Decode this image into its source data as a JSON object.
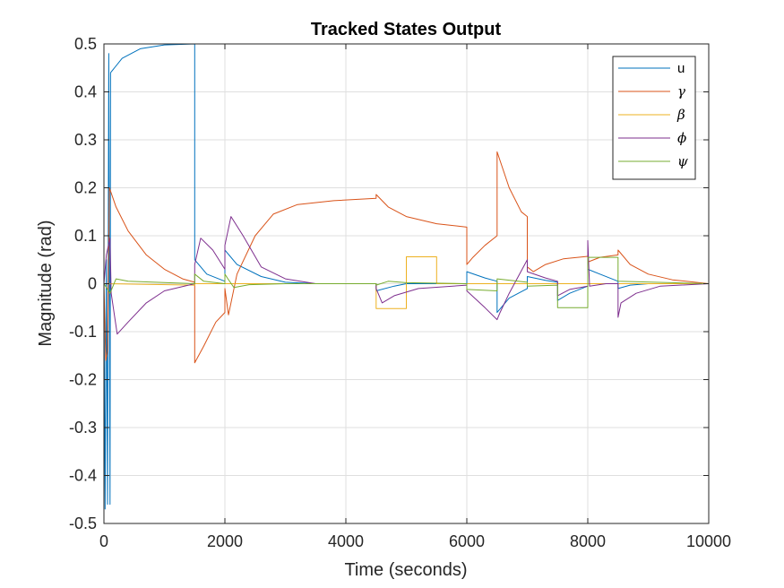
{
  "chart_data": {
    "type": "line",
    "title": "Tracked States Output",
    "xlabel": "Time (seconds)",
    "ylabel": "Magnitude (rad)",
    "xlim": [
      0,
      10000
    ],
    "ylim": [
      -0.5,
      0.5
    ],
    "grid": true,
    "legend_position": "top-right",
    "xticks": [
      0,
      2000,
      4000,
      6000,
      8000,
      10000
    ],
    "xtick_labels": [
      "0",
      "2000",
      "4000",
      "6000",
      "8000",
      "10000"
    ],
    "yticks": [
      -0.5,
      -0.4,
      -0.3,
      -0.2,
      -0.1,
      0,
      0.1,
      0.2,
      0.3,
      0.4,
      0.5
    ],
    "ytick_labels": [
      "-0.5",
      "-0.4",
      "-0.3",
      "-0.2",
      "-0.1",
      "0",
      "0.1",
      "0.2",
      "0.3",
      "0.4",
      "0.5"
    ],
    "series": [
      {
        "name": "u",
        "label": "u",
        "color": "#0072BD",
        "points": [
          [
            0,
            0
          ],
          [
            20,
            -0.47
          ],
          [
            40,
            0.05
          ],
          [
            60,
            -0.46
          ],
          [
            80,
            0.48
          ],
          [
            100,
            -0.46
          ],
          [
            110,
            0.44
          ],
          [
            300,
            0.47
          ],
          [
            600,
            0.49
          ],
          [
            1000,
            0.498
          ],
          [
            1500,
            0.5
          ],
          [
            1500,
            0.05
          ],
          [
            1700,
            0.02
          ],
          [
            2000,
            0.005
          ],
          [
            2000,
            0.07
          ],
          [
            2200,
            0.04
          ],
          [
            2600,
            0.015
          ],
          [
            3000,
            0.003
          ],
          [
            3500,
            0.0
          ],
          [
            4500,
            0.0
          ],
          [
            4500,
            -0.015
          ],
          [
            4800,
            -0.005
          ],
          [
            5000,
            0.0
          ],
          [
            6000,
            0.0
          ],
          [
            6000,
            0.025
          ],
          [
            6300,
            0.012
          ],
          [
            6500,
            0.005
          ],
          [
            6500,
            -0.06
          ],
          [
            6700,
            -0.03
          ],
          [
            7000,
            -0.01
          ],
          [
            7000,
            0.015
          ],
          [
            7300,
            0.007
          ],
          [
            7500,
            0.003
          ],
          [
            7500,
            -0.035
          ],
          [
            7700,
            -0.02
          ],
          [
            8000,
            -0.005
          ],
          [
            8000,
            0.03
          ],
          [
            8200,
            0.02
          ],
          [
            8500,
            0.005
          ],
          [
            8500,
            -0.01
          ],
          [
            8700,
            -0.003
          ],
          [
            9000,
            0.0
          ],
          [
            10000,
            0.0
          ]
        ]
      },
      {
        "name": "gamma",
        "label": "γ",
        "color": "#D95319",
        "points": [
          [
            0,
            0
          ],
          [
            30,
            -0.16
          ],
          [
            60,
            -0.14
          ],
          [
            90,
            0.2
          ],
          [
            200,
            0.16
          ],
          [
            400,
            0.11
          ],
          [
            700,
            0.06
          ],
          [
            1000,
            0.03
          ],
          [
            1300,
            0.01
          ],
          [
            1500,
            0.003
          ],
          [
            1500,
            -0.165
          ],
          [
            1650,
            -0.13
          ],
          [
            1850,
            -0.08
          ],
          [
            2000,
            -0.06
          ],
          [
            2000,
            -0.01
          ],
          [
            2060,
            -0.065
          ],
          [
            2200,
            0.02
          ],
          [
            2500,
            0.1
          ],
          [
            2800,
            0.145
          ],
          [
            3200,
            0.165
          ],
          [
            3800,
            0.173
          ],
          [
            4500,
            0.178
          ],
          [
            4500,
            0.186
          ],
          [
            4700,
            0.16
          ],
          [
            5000,
            0.14
          ],
          [
            5500,
            0.125
          ],
          [
            6000,
            0.118
          ],
          [
            6000,
            0.04
          ],
          [
            6100,
            0.055
          ],
          [
            6300,
            0.08
          ],
          [
            6500,
            0.1
          ],
          [
            6500,
            0.275
          ],
          [
            6700,
            0.2
          ],
          [
            6900,
            0.15
          ],
          [
            7000,
            0.14
          ],
          [
            7000,
            0.035
          ],
          [
            7100,
            0.025
          ],
          [
            7300,
            0.04
          ],
          [
            7600,
            0.052
          ],
          [
            8000,
            0.057
          ],
          [
            8000,
            0.045
          ],
          [
            8200,
            0.055
          ],
          [
            8500,
            0.06
          ],
          [
            8500,
            0.07
          ],
          [
            8700,
            0.04
          ],
          [
            9000,
            0.02
          ],
          [
            9400,
            0.008
          ],
          [
            10000,
            0.0
          ]
        ]
      },
      {
        "name": "beta",
        "label": "β",
        "color": "#EDB120",
        "points": [
          [
            0,
            0
          ],
          [
            1500,
            -0.003
          ],
          [
            1500,
            0.0
          ],
          [
            4500,
            0.0
          ],
          [
            4500,
            -0.052
          ],
          [
            5000,
            -0.052
          ],
          [
            5000,
            0.056
          ],
          [
            5500,
            0.056
          ],
          [
            5500,
            0.0
          ],
          [
            10000,
            0.0
          ]
        ]
      },
      {
        "name": "phi",
        "label": "ϕ",
        "color": "#7E2F8E",
        "points": [
          [
            0,
            0
          ],
          [
            40,
            0.06
          ],
          [
            100,
            0.095
          ],
          [
            120,
            -0.02
          ],
          [
            220,
            -0.105
          ],
          [
            400,
            -0.08
          ],
          [
            700,
            -0.04
          ],
          [
            1000,
            -0.015
          ],
          [
            1500,
            0.0
          ],
          [
            1500,
            0.04
          ],
          [
            1600,
            0.095
          ],
          [
            1800,
            0.07
          ],
          [
            2000,
            0.03
          ],
          [
            2000,
            0.08
          ],
          [
            2100,
            0.14
          ],
          [
            2300,
            0.1
          ],
          [
            2600,
            0.035
          ],
          [
            3000,
            0.01
          ],
          [
            3500,
            0.0
          ],
          [
            4500,
            0.0
          ],
          [
            4500,
            -0.01
          ],
          [
            4600,
            -0.04
          ],
          [
            4800,
            -0.025
          ],
          [
            5200,
            -0.01
          ],
          [
            6000,
            -0.003
          ],
          [
            6000,
            -0.015
          ],
          [
            6300,
            -0.05
          ],
          [
            6500,
            -0.075
          ],
          [
            6550,
            -0.06
          ],
          [
            6700,
            -0.02
          ],
          [
            7000,
            0.05
          ],
          [
            7000,
            0.025
          ],
          [
            7300,
            0.012
          ],
          [
            7500,
            0.005
          ],
          [
            7500,
            -0.025
          ],
          [
            7700,
            -0.012
          ],
          [
            8000,
            -0.005
          ],
          [
            8000,
            0.09
          ],
          [
            8030,
            -0.005
          ],
          [
            8300,
            0.0
          ],
          [
            8500,
            0.0
          ],
          [
            8500,
            -0.07
          ],
          [
            8550,
            -0.04
          ],
          [
            8800,
            -0.02
          ],
          [
            9200,
            -0.005
          ],
          [
            10000,
            0.0
          ]
        ]
      },
      {
        "name": "psi",
        "label": "ψ",
        "color": "#77AC30",
        "points": [
          [
            0,
            0
          ],
          [
            100,
            -0.02
          ],
          [
            200,
            0.01
          ],
          [
            400,
            0.005
          ],
          [
            1500,
            0.0
          ],
          [
            1500,
            0.02
          ],
          [
            1650,
            0.005
          ],
          [
            2000,
            0.0
          ],
          [
            2000,
            0.02
          ],
          [
            2050,
            0.01
          ],
          [
            2150,
            -0.008
          ],
          [
            2400,
            -0.002
          ],
          [
            3000,
            0.0
          ],
          [
            4500,
            0.0
          ],
          [
            4500,
            -0.003
          ],
          [
            4700,
            0.005
          ],
          [
            5000,
            0.002
          ],
          [
            6000,
            0.0
          ],
          [
            6000,
            -0.012
          ],
          [
            6500,
            -0.015
          ],
          [
            6500,
            0.01
          ],
          [
            7000,
            0.003
          ],
          [
            7000,
            -0.005
          ],
          [
            7500,
            -0.003
          ],
          [
            7500,
            -0.05
          ],
          [
            8000,
            -0.05
          ],
          [
            8000,
            0.055
          ],
          [
            8500,
            0.055
          ],
          [
            8500,
            0.005
          ],
          [
            10000,
            0.0
          ]
        ]
      }
    ]
  }
}
